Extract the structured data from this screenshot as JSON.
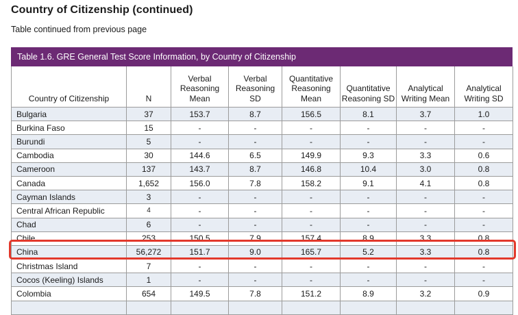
{
  "page": {
    "title": "Country of Citizenship (continued)",
    "subtitle": "Table continued from previous page"
  },
  "table": {
    "caption": "Table 1.6. GRE General Test Score Information, by Country of Citizenship",
    "columns": [
      "Country of Citizenship",
      "N",
      "Verbal Reasoning Mean",
      "Verbal Reasoning SD",
      "Quantitative Reasoning Mean",
      "Quantitative Reasoning SD",
      "Analytical Writing Mean",
      "Analytical Writing SD"
    ],
    "rows": [
      {
        "country": "Bulgaria",
        "n": "37",
        "scores": [
          "153.7",
          "8.7",
          "156.5",
          "8.1",
          "3.7",
          "1.0"
        ],
        "highlighted": false
      },
      {
        "country": "Burkina Faso",
        "n": "15",
        "scores": [
          "-",
          "-",
          "-",
          "-",
          "-",
          "-"
        ],
        "highlighted": false
      },
      {
        "country": "Burundi",
        "n": "5",
        "scores": [
          "-",
          "-",
          "-",
          "-",
          "-",
          "-"
        ],
        "highlighted": false
      },
      {
        "country": "Cambodia",
        "n": "30",
        "scores": [
          "144.6",
          "6.5",
          "149.9",
          "9.3",
          "3.3",
          "0.6"
        ],
        "highlighted": false
      },
      {
        "country": "Cameroon",
        "n": "137",
        "scores": [
          "143.7",
          "8.7",
          "146.8",
          "10.4",
          "3.0",
          "0.8"
        ],
        "highlighted": false
      },
      {
        "country": "Canada",
        "n": "1,652",
        "scores": [
          "156.0",
          "7.8",
          "158.2",
          "9.1",
          "4.1",
          "0.8"
        ],
        "highlighted": false
      },
      {
        "country": "Cayman Islands",
        "n": "3",
        "scores": [
          "-",
          "-",
          "-",
          "-",
          "-",
          "-"
        ],
        "highlighted": false
      },
      {
        "country": "Central African Republic",
        "n": "4",
        "scores": [
          "-",
          "-",
          "-",
          "-",
          "-",
          "-"
        ],
        "highlighted": false,
        "n_small": true
      },
      {
        "country": "Chad",
        "n": "6",
        "scores": [
          "-",
          "-",
          "-",
          "-",
          "-",
          "-"
        ],
        "highlighted": false
      },
      {
        "country": "Chile",
        "n": "253",
        "scores": [
          "150.5",
          "7.9",
          "157.4",
          "8.9",
          "3.3",
          "0.8"
        ],
        "highlighted": false
      },
      {
        "country": "China",
        "n": "56,272",
        "scores": [
          "151.7",
          "9.0",
          "165.7",
          "5.2",
          "3.3",
          "0.8"
        ],
        "highlighted": true
      },
      {
        "country": "Christmas Island",
        "n": "7",
        "scores": [
          "-",
          "-",
          "-",
          "-",
          "-",
          "-"
        ],
        "highlighted": false
      },
      {
        "country": "Cocos (Keeling) Islands",
        "n": "1",
        "scores": [
          "-",
          "-",
          "-",
          "-",
          "-",
          "-"
        ],
        "highlighted": false
      },
      {
        "country": "Colombia",
        "n": "654",
        "scores": [
          "149.5",
          "7.8",
          "151.2",
          "8.9",
          "3.2",
          "0.9"
        ],
        "highlighted": false
      }
    ]
  },
  "colors": {
    "header_bar": "#6C2A74",
    "row_stripe": "#E8EDF4",
    "grid_line": "#9B9B9B",
    "highlight_box": "#E2382B",
    "text": "#1A1A1A"
  }
}
